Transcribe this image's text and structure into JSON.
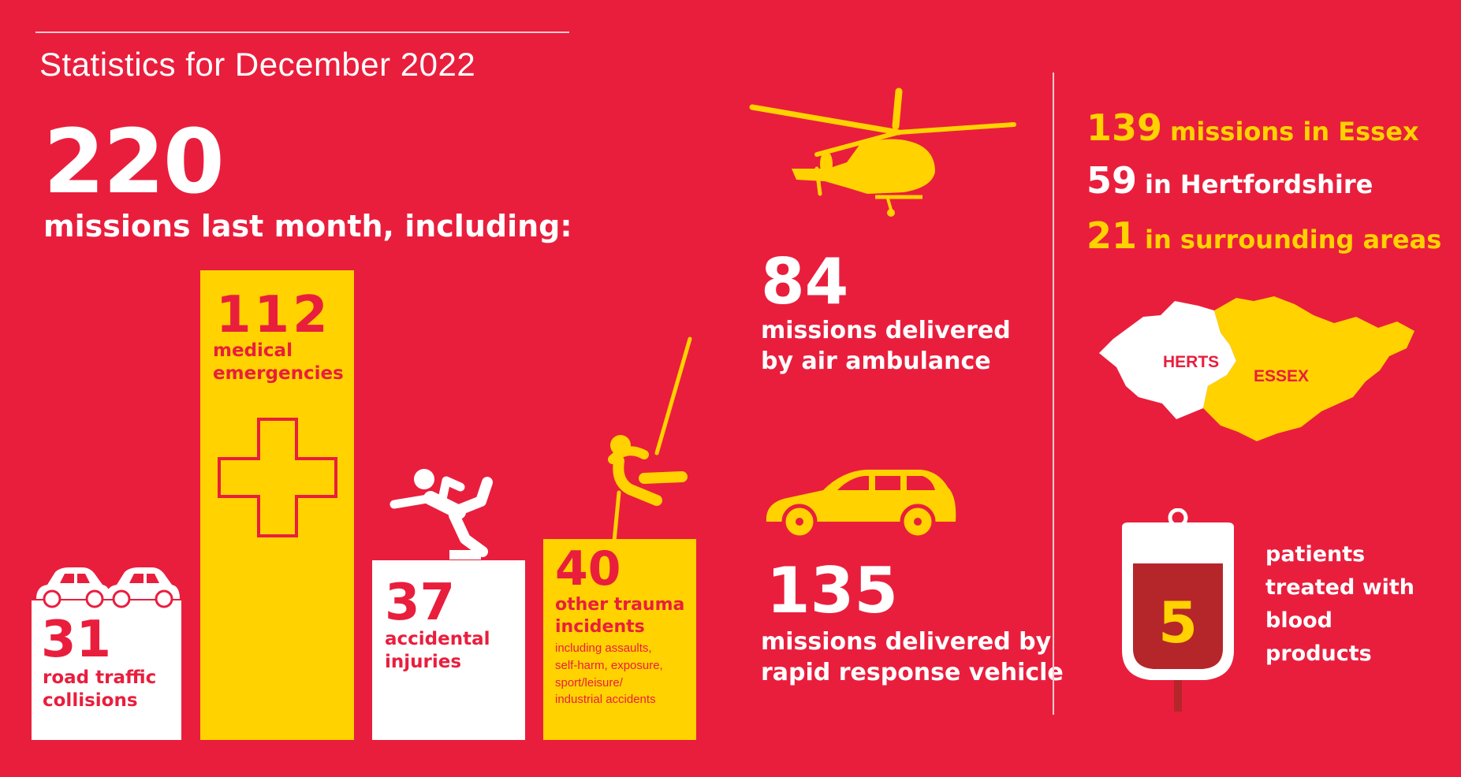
{
  "title": "Statistics for December 2022",
  "total": {
    "value": "220",
    "label": "missions last month, including:"
  },
  "categories": [
    {
      "value": "31",
      "label_line1": "road traffic",
      "label_line2": "collisions"
    },
    {
      "value": "112",
      "label_line1": "medical",
      "label_line2": "emergencies"
    },
    {
      "value": "37",
      "label_line1": "accidental",
      "label_line2": "injuries"
    },
    {
      "value": "40",
      "label_line1": "other trauma",
      "label_line2": "incidents",
      "detail": [
        "including assaults,",
        "self-harm, exposure,",
        "sport/leisure/",
        "industrial accidents"
      ]
    }
  ],
  "air": {
    "value": "84",
    "line1": "missions delivered",
    "line2": "by air ambulance"
  },
  "rrv": {
    "value": "135",
    "line1": "missions delivered by",
    "line2": "rapid response vehicle"
  },
  "regions": [
    {
      "value": "139",
      "label": "missions in Essex",
      "color": "#ffd200"
    },
    {
      "value": "59",
      "label": "in Hertfordshire",
      "color": "#ffffff"
    },
    {
      "value": "21",
      "label": "in surrounding areas",
      "color": "#ffd200"
    }
  ],
  "map": {
    "herts_label": "HERTS",
    "essex_label": "ESSEX"
  },
  "blood": {
    "value": "5",
    "lines": [
      "patients",
      "treated with",
      "blood",
      "products"
    ]
  },
  "colors": {
    "background": "#e91e3d",
    "accent": "#ffd200",
    "white": "#ffffff",
    "blood": "#b5262a"
  }
}
